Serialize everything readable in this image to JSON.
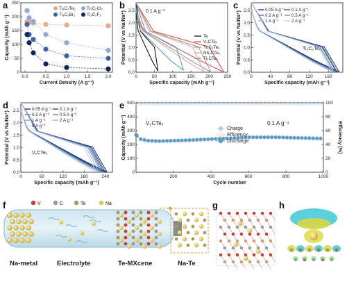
{
  "panel_labels": {
    "a": "a",
    "b": "b",
    "c": "c",
    "d": "d",
    "e": "e",
    "f": "f",
    "g": "g",
    "h": "h"
  },
  "chart_data": [
    {
      "id": "a",
      "type": "scatter",
      "xlabel": "Current Density (A g⁻¹)",
      "ylabel": "Capacity (mAh g⁻¹)",
      "xlim": [
        -0.1,
        2.1
      ],
      "ylim": [
        0,
        250
      ],
      "xticks": [
        "0.0",
        "0.5",
        "1.0",
        "1.5",
        "2.0"
      ],
      "yticks": [
        "0",
        "50",
        "100",
        "150",
        "200",
        "250"
      ],
      "series": [
        {
          "name": "Ti₃C₂Te₂",
          "color": "#f0a68a",
          "x": [
            0.05,
            0.1,
            0.2,
            0.5,
            1.0,
            2.0
          ],
          "y": [
            182,
            180,
            177,
            172,
            170,
            167
          ]
        },
        {
          "name": "Ti₃C₂Cl₂",
          "color": "#8fa9d4",
          "x": [
            0.05,
            0.1,
            0.2,
            0.5,
            1.0,
            2.0
          ],
          "y": [
            222,
            196,
            183,
            136,
            106,
            79
          ]
        },
        {
          "name": "Ti₃C₂Br₂",
          "color": "#3d63a7",
          "x": [
            0.05,
            0.1,
            0.2,
            0.5,
            1.0,
            2.0
          ],
          "y": [
            172,
            136,
            118,
            83,
            59,
            50
          ]
        },
        {
          "name": "Ti₃C₂F₂",
          "color": "#0f2760",
          "x": [
            0.05,
            0.1,
            0.2,
            0.5,
            1.0,
            2.0
          ],
          "y": [
            136,
            106,
            70,
            30,
            17,
            12
          ]
        }
      ]
    },
    {
      "id": "b",
      "type": "line",
      "annotation": "0.1 A g⁻¹",
      "xlabel": "Specific capacity (mAh g⁻¹)",
      "ylabel": "Potential (V vs Na/Na⁺)",
      "xlim": [
        0,
        250
      ],
      "ylim": [
        0,
        2.8
      ],
      "xticks": [
        "0",
        "50",
        "100",
        "150",
        "200",
        "250"
      ],
      "yticks": [
        "0.0",
        "0.5",
        "1.0",
        "1.5",
        "2.0",
        "2.5"
      ],
      "series": [
        {
          "name": "Te",
          "color": "#111111",
          "cap": 60,
          "minV": 0.05
        },
        {
          "name": "V₂CTeₓ",
          "color": "#d0544a",
          "cap": 240,
          "minV": 0.0
        },
        {
          "name": "Ti₃C₂Teₓ",
          "color": "#999999",
          "cap": 205,
          "minV": 0.0
        },
        {
          "name": "Nb₂CTeₓ",
          "color": "#e8a99a",
          "cap": 185,
          "minV": 0.02
        },
        {
          "name": "Ti₂CTeₓ",
          "color": "#5a9bc6",
          "cap": 130,
          "minV": 0.08
        }
      ]
    },
    {
      "id": "c",
      "type": "line",
      "series_label": "Ti₃C₂Teₓ",
      "xlabel": "Specific capacity (mAh g⁻¹)",
      "ylabel": "Potential (V vs Na/Na⁺)",
      "xlim": [
        0,
        190
      ],
      "ylim": [
        0,
        2.8
      ],
      "xticks": [
        "0",
        "40",
        "80",
        "120",
        "160"
      ],
      "yticks": [
        "0.0",
        "0.5",
        "1.0",
        "1.5",
        "2.0",
        "2.5"
      ],
      "series": [
        {
          "name": "0.05 A g⁻¹",
          "color": "#0f2760",
          "cap": 182
        },
        {
          "name": "0.1 A g⁻¹",
          "color": "#2d4f8c",
          "cap": 178
        },
        {
          "name": "0.2 A g⁻¹",
          "color": "#46689f",
          "cap": 176
        },
        {
          "name": "0.5 A g⁻¹",
          "color": "#6f8dbd",
          "cap": 172
        },
        {
          "name": "1 A g⁻¹",
          "color": "#98b2d6",
          "cap": 170
        },
        {
          "name": "2 A g⁻¹",
          "color": "#b8cde6",
          "cap": 167
        }
      ]
    },
    {
      "id": "d",
      "type": "line",
      "series_label": "V₂CTeₓ",
      "xlabel": "Specific capacity (mAh g⁻¹)",
      "ylabel": "Potential (V vs Na/Na⁺)",
      "xlim": [
        0,
        260
      ],
      "ylim": [
        0,
        2.8
      ],
      "xticks": [
        "0",
        "60",
        "120",
        "180",
        "240"
      ],
      "yticks": [
        "0.0",
        "0.5",
        "1.0",
        "1.5",
        "2.0",
        "2.5"
      ],
      "series": [
        {
          "name": "0.05 A g⁻¹",
          "color": "#0f2760",
          "cap": 245
        },
        {
          "name": "0.1 A g⁻¹",
          "color": "#22437e",
          "cap": 240
        },
        {
          "name": "0.2 A g⁻¹",
          "color": "#365a95",
          "cap": 236
        },
        {
          "name": "0.5 A g⁻¹",
          "color": "#5376ad",
          "cap": 232
        },
        {
          "name": "1 A g⁻¹",
          "color": "#7595c5",
          "cap": 228
        },
        {
          "name": "2 A g⁻¹",
          "color": "#9ab4da",
          "cap": 222
        },
        {
          "name": "5 A g⁻¹",
          "color": "#bfd0ea",
          "cap": 215
        }
      ]
    },
    {
      "id": "e",
      "type": "scatter",
      "annotation_left": "V₂CTeₓ",
      "annotation_right": "0.1 A g⁻¹",
      "xlabel": "Cycle number",
      "ylabel": "Capacity (mAh g⁻¹)",
      "ylabel_right": "Efficiency (%)",
      "xlim": [
        0,
        1000
      ],
      "ylim": [
        0,
        500
      ],
      "ylim_right": [
        0,
        100
      ],
      "xticks": [
        "200",
        "400",
        "600",
        "800",
        "1000"
      ],
      "yticks": [
        "0",
        "100",
        "200",
        "300",
        "400",
        "500"
      ],
      "yticks_right": [
        "0",
        "20",
        "40",
        "60",
        "80",
        "100"
      ],
      "series": [
        {
          "name": "Charge",
          "color": "#b7d0e6"
        },
        {
          "name": "Efficiency",
          "color": "#f6c8a4"
        },
        {
          "name": "Discharge",
          "color": "#5a9bc6"
        }
      ],
      "capacity_profile": [
        [
          1,
          268
        ],
        [
          20,
          240
        ],
        [
          60,
          228
        ],
        [
          120,
          224
        ],
        [
          300,
          232
        ],
        [
          500,
          245
        ],
        [
          600,
          252
        ],
        [
          750,
          252
        ],
        [
          850,
          248
        ],
        [
          1000,
          243
        ]
      ],
      "efficiency_percent": 99
    }
  ],
  "panel_f": {
    "legend": [
      {
        "name": "V",
        "color": "#c8403a"
      },
      {
        "name": "C",
        "color": "#9a9a9a"
      },
      {
        "name": "Te",
        "color": "#a89a62"
      },
      {
        "name": "Na",
        "color": "#e2c84a"
      }
    ],
    "labels": {
      "anode": "Na-metal",
      "electrolyte": "Electrolyte",
      "cathode": "Te-MXcene",
      "product": "Na-Te"
    }
  }
}
